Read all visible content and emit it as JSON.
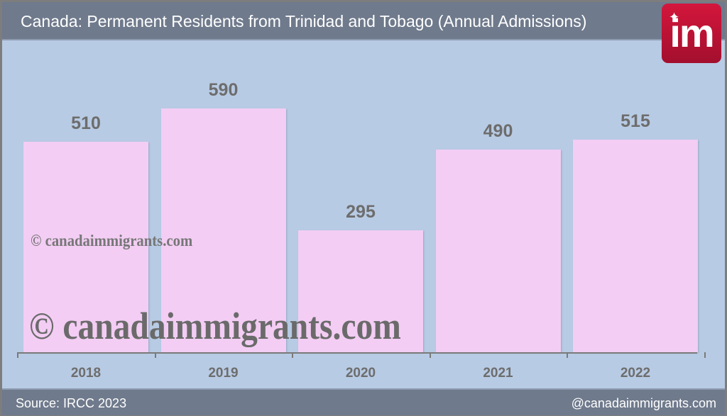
{
  "header": {
    "title": "Canada: Permanent Residents from Trinidad and Tobago (Annual Admissions)"
  },
  "logo": {
    "text": "im",
    "icon": "maple-leaf-icon",
    "color": "#c8143a"
  },
  "footer": {
    "source": "Source: IRCC 2023",
    "handle": "@canadaimmigrants.com"
  },
  "watermark": {
    "small": "© canadaimmigrants.com",
    "large": "© canadaimmigrants.com"
  },
  "colors": {
    "bar": "#f3cdf4",
    "background": "#b8cbe4",
    "header": "#6f7a8c",
    "text": "#6d6d6d"
  },
  "chart_data": {
    "type": "bar",
    "title": "Canada: Permanent Residents from Trinidad and Tobago (Annual Admissions)",
    "categories": [
      "2018",
      "2019",
      "2020",
      "2021",
      "2022"
    ],
    "values": [
      510,
      590,
      295,
      490,
      515
    ],
    "value_labels": [
      "510",
      "590",
      "295",
      "490",
      "515"
    ],
    "xlabel": "",
    "ylabel": "",
    "ylim": [
      0,
      680
    ],
    "grid": false,
    "legend": null,
    "source": "Source: IRCC 2023"
  }
}
